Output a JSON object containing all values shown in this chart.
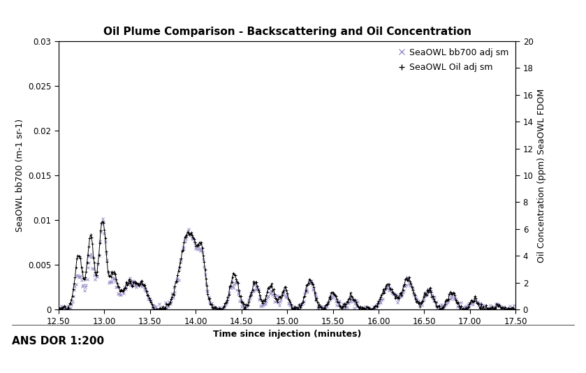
{
  "title": "Oil Plume Comparison - Backscattering and Oil Concentration",
  "xlabel": "Time since injection (minutes)",
  "ylabel_left": "SeaOWL bb700 (m-1 sr-1)",
  "ylabel_right": "Oil Concentration (ppm) SeaOWL FDOM",
  "subtitle": "ANS DOR 1:200",
  "xlim": [
    12.5,
    17.5
  ],
  "ylim_left": [
    0,
    0.03
  ],
  "ylim_right": [
    0,
    20
  ],
  "xticks": [
    12.5,
    13.0,
    13.5,
    14.0,
    14.5,
    15.0,
    15.5,
    16.0,
    16.5,
    17.0,
    17.5
  ],
  "xtick_labels": [
    "12.50",
    "13.00",
    "13.50",
    "14.00",
    "14.50",
    "15.00",
    "15.50",
    "16.00",
    "16.50",
    "17.00",
    "17.50"
  ],
  "yticks_left": [
    0,
    0.005,
    0.01,
    0.015,
    0.02,
    0.025,
    0.03
  ],
  "ytick_labels_left": [
    "0",
    "0.005",
    "0.01",
    "0.015",
    "0.02",
    "0.025",
    "0.03"
  ],
  "yticks_right": [
    0,
    2,
    4,
    6,
    8,
    10,
    12,
    14,
    16,
    18,
    20
  ],
  "legend_entries": [
    "SeaOWL bb700 adj sm",
    "SeaOWL Oil adj sm"
  ],
  "bb700_color": "#9b8dc8",
  "oil_color": "#000000",
  "background_color": "#ffffff",
  "title_fontsize": 11,
  "label_fontsize": 9,
  "tick_fontsize": 8.5
}
